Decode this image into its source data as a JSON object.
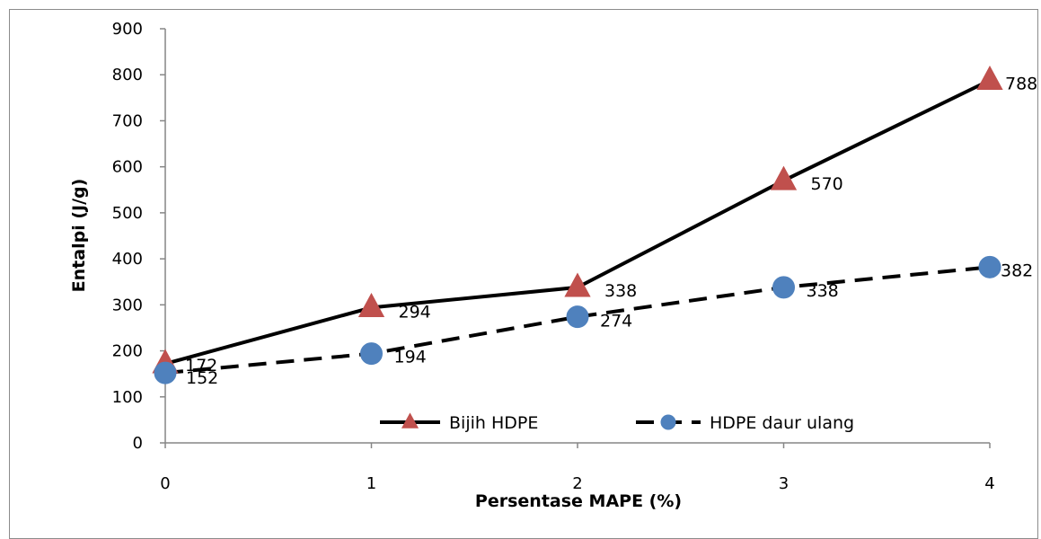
{
  "chart_data": {
    "type": "line",
    "title": "",
    "xlabel": "Persentase MAPE (%)",
    "ylabel": "Entalpi (J/g)",
    "x": [
      0,
      1,
      2,
      3,
      4
    ],
    "x_ticks": [
      "0",
      "1",
      "2",
      "3",
      "4"
    ],
    "ylim": [
      0,
      900
    ],
    "y_ticks": [
      "0",
      "100",
      "200",
      "300",
      "400",
      "500",
      "600",
      "700",
      "800",
      "900"
    ],
    "grid": false,
    "legend_position": "bottom-center inside plot",
    "series": [
      {
        "name": "Bijih HDPE",
        "values": [
          172,
          294,
          338,
          570,
          788
        ],
        "labels": [
          "172",
          "294",
          "338",
          "570",
          "788"
        ],
        "line_color": "#000000",
        "marker_color": "#c0504d",
        "marker": "triangle",
        "line_style": "solid"
      },
      {
        "name": "HDPE daur ulang",
        "values": [
          152,
          194,
          274,
          338,
          382
        ],
        "labels": [
          "152",
          "194",
          "274",
          "338",
          "382"
        ],
        "line_color": "#000000",
        "marker_color": "#4f81bd",
        "marker": "circle",
        "line_style": "dashed"
      }
    ]
  }
}
